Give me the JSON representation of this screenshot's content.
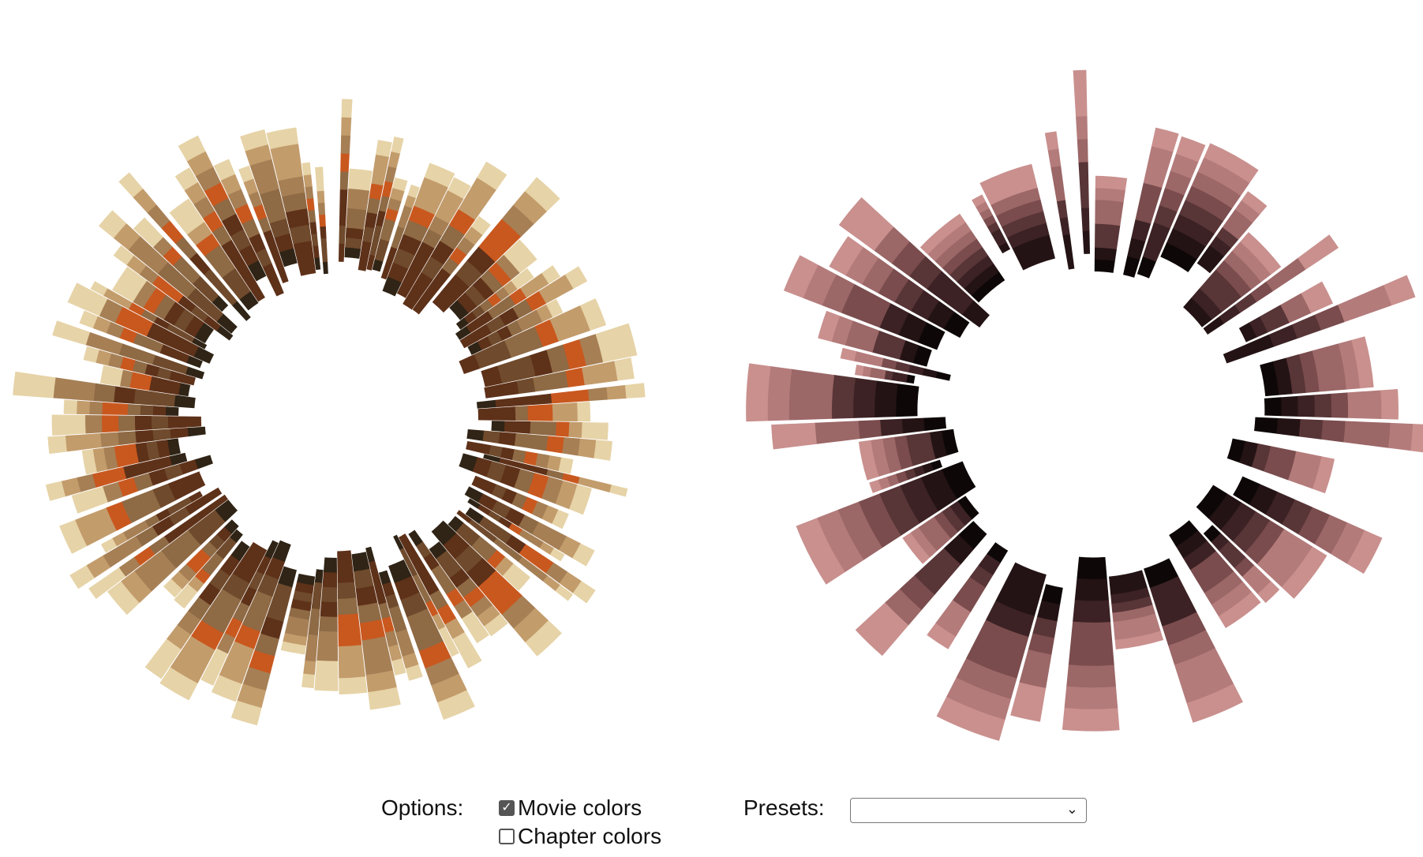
{
  "controls": {
    "options_label": "Options:",
    "movie_colors_label": "Movie colors",
    "movie_colors_checked": true,
    "chapter_colors_label": "Chapter colors",
    "chapter_colors_checked": false,
    "presets_label": "Presets:",
    "presets_value": ""
  },
  "icons": {
    "checkmark": "checkmark-icon",
    "dropdown": "chevron-down-icon"
  },
  "charts": [
    {
      "palette": [
        "#2f2416",
        "#5e3119",
        "#6f4a2c",
        "#8e6a45",
        "#a67f55",
        "#c39c6c",
        "#c9581f",
        "#e6d3a7",
        "#4a7d84"
      ],
      "background": "#ffffff"
    },
    {
      "palette": [
        "#0d0807",
        "#241314",
        "#3c2224",
        "#583537",
        "#7a4c4d",
        "#9c6767",
        "#b47b7b",
        "#c9908e",
        "#ffffff"
      ],
      "background": "#ffffff"
    }
  ]
}
